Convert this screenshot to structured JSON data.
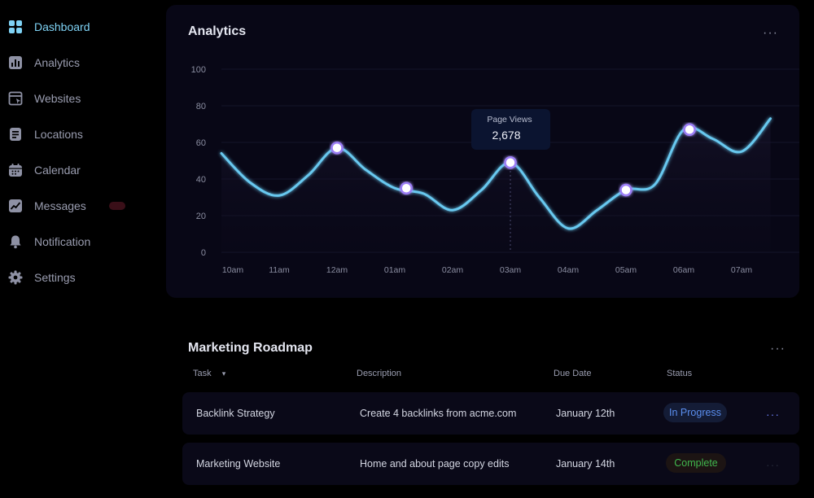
{
  "sidebar": {
    "items": [
      {
        "label": "Dashboard",
        "icon": "grid-icon",
        "active": true
      },
      {
        "label": "Analytics",
        "icon": "bar-chart-icon",
        "active": false
      },
      {
        "label": "Websites",
        "icon": "browser-icon",
        "active": false
      },
      {
        "label": "Locations",
        "icon": "list-icon",
        "active": false
      },
      {
        "label": "Calendar",
        "icon": "calendar-icon",
        "active": false
      },
      {
        "label": "Messages",
        "icon": "chart-line-icon",
        "active": false
      },
      {
        "label": "Notification",
        "icon": "bell-icon",
        "active": false
      },
      {
        "label": "Settings",
        "icon": "gear-icon",
        "active": false
      }
    ]
  },
  "analytics": {
    "title": "Analytics",
    "more_label": "···",
    "tooltip": {
      "label": "Page Views",
      "value": "2,678"
    }
  },
  "chart_data": {
    "type": "line",
    "title": "Analytics",
    "categories": [
      "10am",
      "11am",
      "12am",
      "01am",
      "02am",
      "03am",
      "04am",
      "05am",
      "06am",
      "07am"
    ],
    "x_points": [
      0,
      0.5,
      1,
      1.5,
      2,
      2.5,
      3,
      3.5,
      4,
      4.5,
      5,
      5.5,
      6,
      6.5,
      7,
      7.5,
      8,
      8.5,
      9,
      9.5
    ],
    "y_points": [
      54,
      38,
      31,
      42,
      57,
      45,
      35,
      32,
      23,
      34,
      49,
      30,
      13,
      23,
      34,
      37,
      67,
      62,
      55,
      73
    ],
    "highlighted": [
      {
        "x": 2,
        "y": 57
      },
      {
        "x": 3.2,
        "y": 35
      },
      {
        "x": 5,
        "y": 49
      },
      {
        "x": 7,
        "y": 34
      },
      {
        "x": 8.1,
        "y": 67
      }
    ],
    "tooltip_x": 5,
    "yticks": [
      0,
      20,
      40,
      60,
      80,
      100
    ],
    "ylim": [
      0,
      100
    ],
    "xlabel": "",
    "ylabel": "",
    "line_color": "#67c8ef"
  },
  "roadmap": {
    "title": "Marketing Roadmap",
    "more_label": "···",
    "columns": {
      "task": "Task",
      "task_sort": "▾",
      "description": "Description",
      "due": "Due Date",
      "status": "Status"
    },
    "rows": [
      {
        "task": "Backlink Strategy",
        "description": "Create 4 backlinks from acme.com",
        "due": "January 12th",
        "status": "In Progress",
        "more": "···"
      },
      {
        "task": "Marketing Website",
        "description": "Home and about page copy edits",
        "due": "January 14th",
        "status": "Complete",
        "more": "···"
      }
    ]
  },
  "colors": {
    "accent": "#67c8ef",
    "active_nav": "#7fd3f5",
    "in_progress": "#5b8ff0",
    "complete": "#41b84e"
  }
}
